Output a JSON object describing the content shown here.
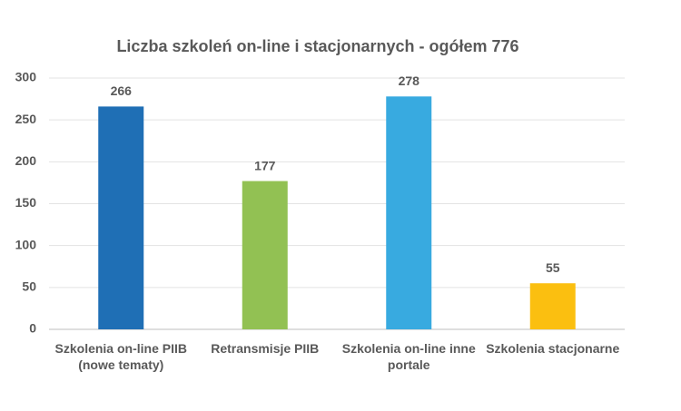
{
  "chart_data": {
    "type": "bar",
    "title": "Liczba szkoleń on-line i stacjonarnych - ogółem 776",
    "categories": [
      "Szkolenia on-line PIIB (nowe tematy)",
      "Retransmisje PIIB",
      "Szkolenia on-line inne portale",
      "Szkolenia stacjonarne"
    ],
    "values": [
      266,
      177,
      278,
      55
    ],
    "colors": [
      "#1f6fb5",
      "#92c153",
      "#38aae0",
      "#fbbf10"
    ],
    "ylim": [
      0,
      300
    ],
    "yticks": [
      0,
      50,
      100,
      150,
      200,
      250,
      300
    ],
    "grid": true
  }
}
